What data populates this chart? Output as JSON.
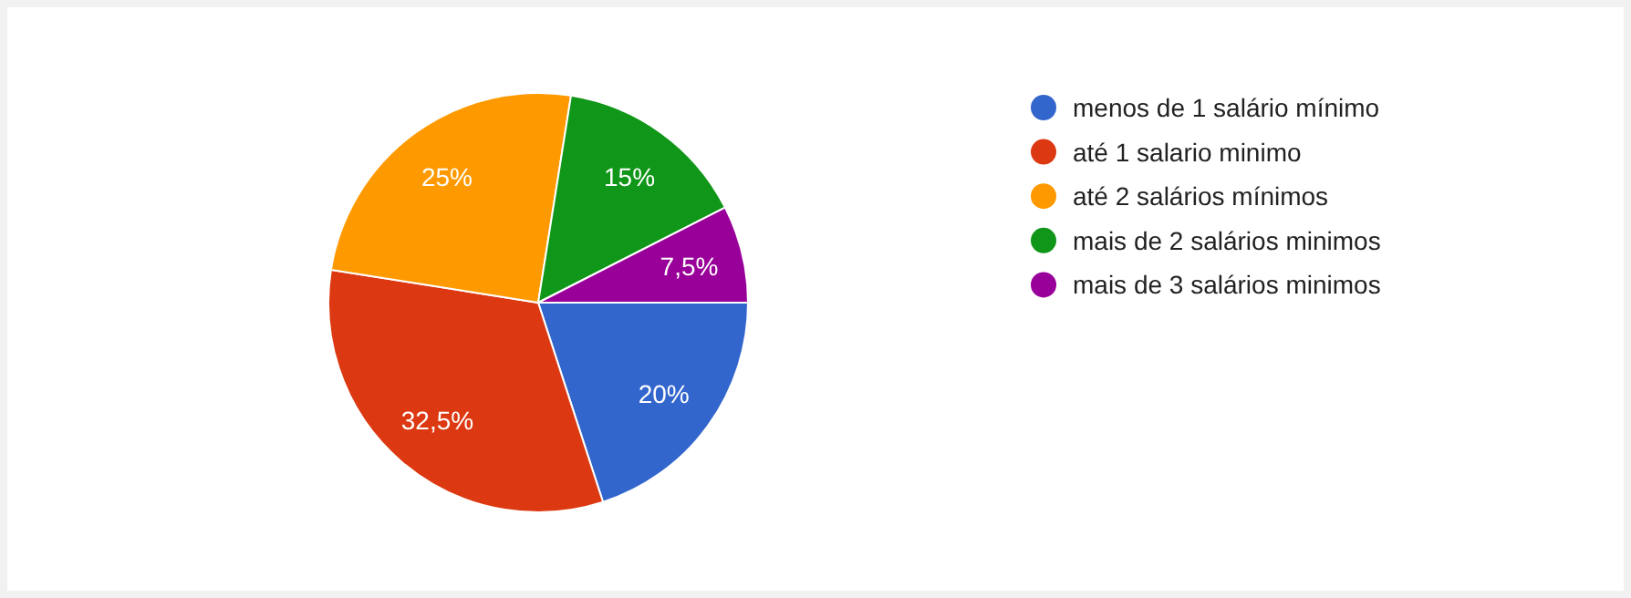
{
  "chart_data": {
    "type": "pie",
    "categories": [
      "menos de 1 salário mínimo",
      "até 1 salario minimo",
      "até 2 salários mínimos",
      "mais de 2 salários minimos",
      "mais de 3 salários minimos"
    ],
    "values": [
      20,
      32.5,
      25,
      15,
      7.5
    ],
    "colors": [
      "#3366cc",
      "#dc3912",
      "#ff9900",
      "#109618",
      "#990099"
    ],
    "value_labels": [
      "20%",
      "32,5%",
      "25%",
      "15%",
      "7,5%"
    ],
    "legend": "right"
  }
}
